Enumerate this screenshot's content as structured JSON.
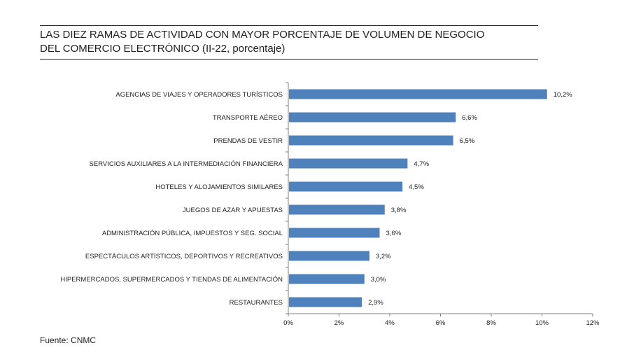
{
  "header": {
    "title_line1": "LAS DIEZ RAMAS DE ACTIVIDAD CON MAYOR PORCENTAJE DE VOLUMEN DE NEGOCIO",
    "title_line2": "DEL COMERCIO ELECTRÓNICO (II-22, porcentaje)"
  },
  "footer": {
    "source": "Fuente: CNMC"
  },
  "colors": {
    "bar": "#4f81bd",
    "axis": "#808080"
  },
  "chart_data": {
    "type": "bar",
    "orientation": "horizontal",
    "title": "LAS DIEZ RAMAS DE ACTIVIDAD CON MAYOR PORCENTAJE DE VOLUMEN DE NEGOCIO DEL COMERCIO ELECTRÓNICO (II-22, porcentaje)",
    "categories": [
      "AGENCIAS DE VIAJES Y OPERADORES TURÍSTICOS",
      "TRANSPORTE AÉREO",
      "PRENDAS DE VESTIR",
      "SERVICIOS AUXILIARES A LA INTERMEDIACIÓN FINANCIERA",
      "HOTELES  Y ALOJAMIENTOS SIMILARES",
      "JUEGOS DE AZAR Y APUESTAS",
      "ADMINISTRACIÓN PÚBLICA, IMPUESTOS Y SEG. SOCIAL",
      "ESPECTÁCULOS ARTÍSTICOS, DEPORTIVOS Y RECREATIVOS",
      "HIPERMERCADOS, SUPERMERCADOS Y TIENDAS DE ALIMENTACIÓN",
      "RESTAURANTES"
    ],
    "values": [
      10.2,
      6.6,
      6.5,
      4.7,
      4.5,
      3.8,
      3.6,
      3.2,
      3.0,
      2.9
    ],
    "value_labels": [
      "10,2%",
      "6,6%",
      "6,5%",
      "4,7%",
      "4,5%",
      "3,8%",
      "3,6%",
      "3,2%",
      "3,0%",
      "2,9%"
    ],
    "xlim": [
      0,
      12
    ],
    "ticks": [
      0,
      2,
      4,
      6,
      8,
      10,
      12
    ],
    "tick_labels": [
      "0%",
      "2%",
      "4%",
      "6%",
      "8%",
      "10%",
      "12%"
    ],
    "xlabel": "",
    "ylabel": "",
    "grid": false,
    "legend": "none"
  }
}
